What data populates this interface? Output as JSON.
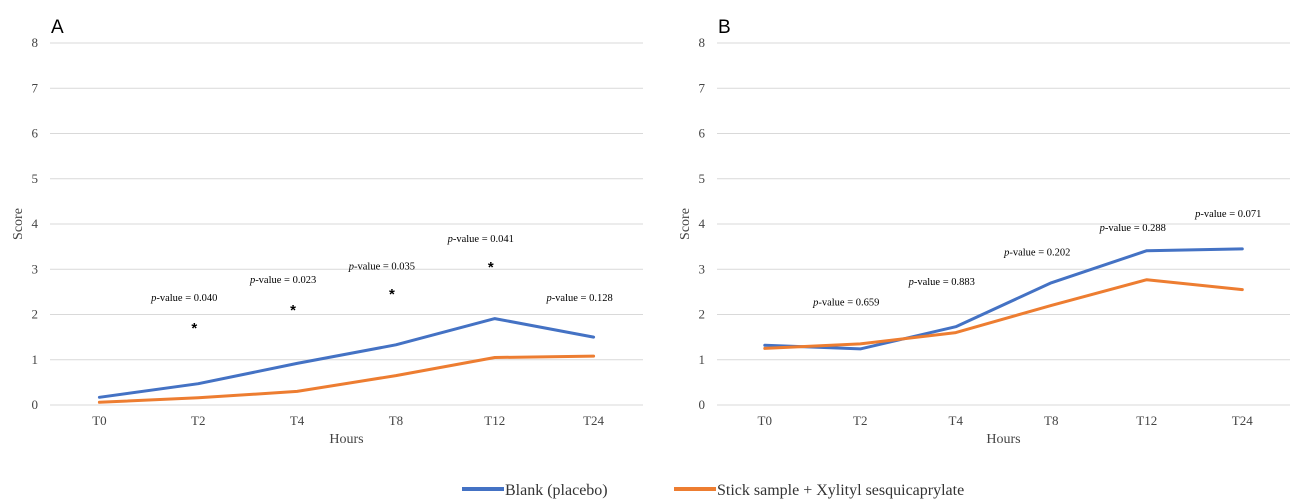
{
  "chart_data": [
    {
      "type": "line",
      "panel_label": "A",
      "categories": [
        "T0",
        "T2",
        "T4",
        "T8",
        "T12",
        "T24"
      ],
      "series": [
        {
          "name": "Blank (placebo)",
          "color": "#4472C4",
          "values": [
            0.17,
            0.47,
            0.92,
            1.33,
            1.91,
            1.5
          ]
        },
        {
          "name": "Stick sample + Xylityl sesquicaprylate",
          "color": "#ED7D31",
          "values": [
            0.06,
            0.16,
            0.3,
            0.65,
            1.05,
            1.08
          ]
        }
      ],
      "xlabel": "Hours",
      "ylabel": "Score",
      "ylim": [
        0,
        8
      ],
      "yticks": [
        0,
        1,
        2,
        3,
        4,
        5,
        6,
        7,
        8
      ],
      "grid": true,
      "annotations": [
        {
          "category": "T2",
          "label": "-value = 0.040",
          "p_symbol": "p",
          "y": 2.3,
          "star": "*",
          "star_y": 1.72
        },
        {
          "category": "T4",
          "label": "-value = 0.023",
          "p_symbol": "p",
          "y": 2.7,
          "star": "*",
          "star_y": 2.12
        },
        {
          "category": "T8",
          "label": "-value = 0.035",
          "p_symbol": "p",
          "y": 3.0,
          "star": "*",
          "star_y": 2.48
        },
        {
          "category": "T12",
          "label": "-value = 0.041",
          "p_symbol": "p",
          "y": 3.6,
          "star": "*",
          "star_y": 3.07
        },
        {
          "category": "T24",
          "label": "-value = 0.128",
          "p_symbol": "p",
          "y": 2.3,
          "star": "",
          "star_y": 0
        }
      ]
    },
    {
      "type": "line",
      "panel_label": "B",
      "categories": [
        "T0",
        "T2",
        "T4",
        "T8",
        "T12",
        "T24"
      ],
      "series": [
        {
          "name": "Blank (placebo)",
          "color": "#4472C4",
          "values": [
            1.32,
            1.24,
            1.73,
            2.7,
            3.41,
            3.45
          ]
        },
        {
          "name": "Stick sample + Xylityl sesquicaprylate",
          "color": "#ED7D31",
          "values": [
            1.25,
            1.35,
            1.6,
            2.2,
            2.77,
            2.55
          ]
        }
      ],
      "xlabel": "Hours",
      "ylabel": "Score",
      "ylim": [
        0,
        8
      ],
      "yticks": [
        0,
        1,
        2,
        3,
        4,
        5,
        6,
        7,
        8
      ],
      "grid": true,
      "annotations": [
        {
          "category": "T2",
          "label": "-value = 0.659",
          "p_symbol": "p",
          "y": 2.2,
          "star": "",
          "star_y": 0
        },
        {
          "category": "T4",
          "label": "-value = 0.883",
          "p_symbol": "p",
          "y": 2.65,
          "star": "",
          "star_y": 0
        },
        {
          "category": "T8",
          "label": "-value = 0.202",
          "p_symbol": "p",
          "y": 3.3,
          "star": "",
          "star_y": 0
        },
        {
          "category": "T12",
          "label": "-value = 0.288",
          "p_symbol": "p",
          "y": 3.85,
          "star": "",
          "star_y": 0
        },
        {
          "category": "T24",
          "label": "-value = 0.071",
          "p_symbol": "p",
          "y": 4.15,
          "star": "",
          "star_y": 0
        }
      ]
    }
  ],
  "legend": {
    "placement": "bottom-center",
    "items": [
      {
        "label": "Blank (placebo)",
        "color": "#4472C4"
      },
      {
        "label": "Stick sample + Xylityl sesquicaprylate",
        "color": "#ED7D31"
      }
    ]
  }
}
